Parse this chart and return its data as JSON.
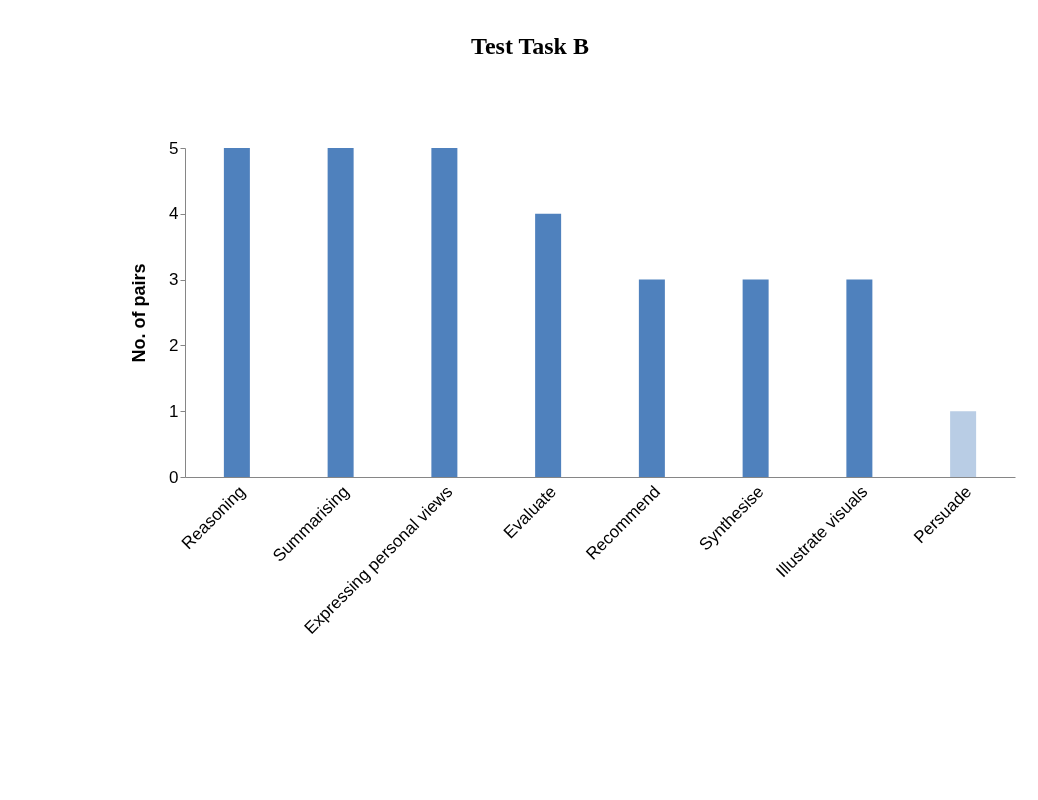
{
  "chart_data": {
    "type": "bar",
    "title": "Test Task B",
    "ylabel": "No. of pairs",
    "categories": [
      "Reasoning",
      "Summarising",
      "Expressing personal views",
      "Evaluate",
      "Recommend",
      "Synthesise",
      "Illustrate visuals",
      "Persuade"
    ],
    "values": [
      5,
      5,
      5,
      4,
      3,
      3,
      3,
      1
    ],
    "colors": [
      "#4f81bd",
      "#4f81bd",
      "#4f81bd",
      "#4f81bd",
      "#4f81bd",
      "#4f81bd",
      "#4f81bd",
      "#b9cde5"
    ],
    "ylim": [
      0,
      5
    ],
    "yticks": [
      0,
      1,
      2,
      3,
      4,
      5
    ],
    "grid": false
  }
}
